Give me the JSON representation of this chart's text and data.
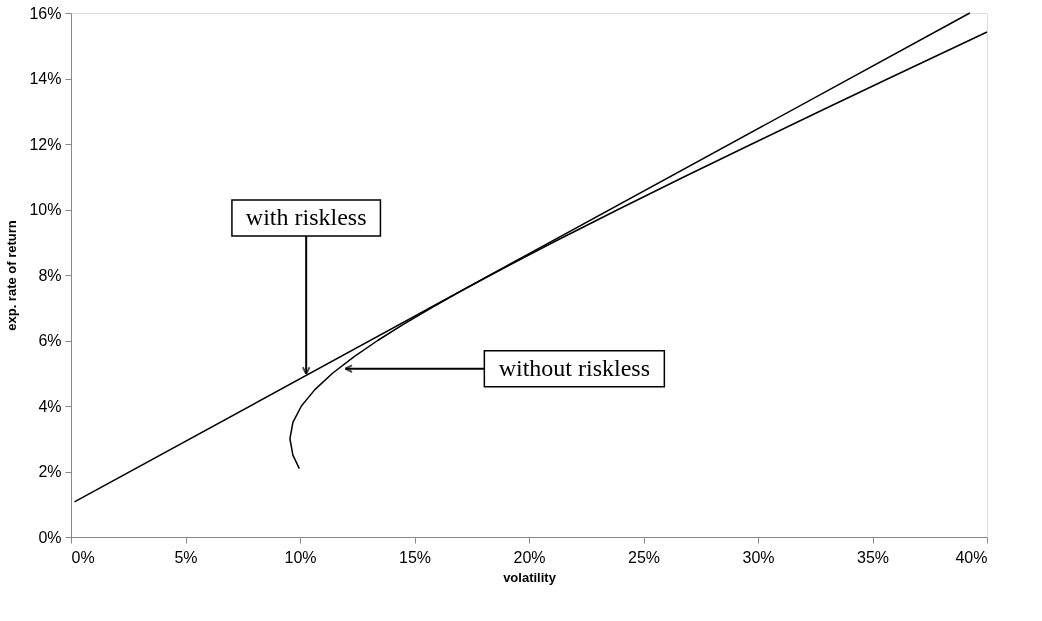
{
  "chart_data": {
    "type": "line",
    "xlabel": "volatility",
    "ylabel": "exp. rate of return",
    "xlim": [
      0,
      40
    ],
    "ylim": [
      0,
      16
    ],
    "xticks": [
      {
        "value": 0,
        "label": "0%"
      },
      {
        "value": 5,
        "label": "5%"
      },
      {
        "value": 10,
        "label": "10%"
      },
      {
        "value": 15,
        "label": "15%"
      },
      {
        "value": 20,
        "label": "20%"
      },
      {
        "value": 25,
        "label": "25%"
      },
      {
        "value": 30,
        "label": "30%"
      },
      {
        "value": 35,
        "label": "35%"
      },
      {
        "value": 40,
        "label": "40%"
      }
    ],
    "yticks": [
      {
        "value": 0,
        "label": "0%"
      },
      {
        "value": 2,
        "label": "2%"
      },
      {
        "value": 4,
        "label": "4%"
      },
      {
        "value": 6,
        "label": "6%"
      },
      {
        "value": 8,
        "label": "8%"
      },
      {
        "value": 10,
        "label": "10%"
      },
      {
        "value": 12,
        "label": "12%"
      },
      {
        "value": 14,
        "label": "14%"
      },
      {
        "value": 16,
        "label": "16%"
      }
    ],
    "grid": false,
    "marker": "none",
    "line_style": "solid",
    "series": [
      {
        "color": "#000000",
        "x": [
          0.15,
          39.25
        ],
        "values": [
          1.07,
          16.0
        ]
      },
      {
        "color": "#000000",
        "x": [
          9.97,
          9.69,
          9.56,
          9.69,
          10.06,
          10.65,
          11.42,
          12.35,
          13.39,
          14.53,
          15.74,
          17.01,
          18.33,
          21.06,
          23.89,
          26.78,
          29.73,
          32.7,
          35.7,
          38.73,
          40.0
        ],
        "values": [
          2.09,
          2.5,
          3.0,
          3.5,
          4.0,
          4.5,
          5.0,
          5.5,
          6.0,
          6.5,
          7.0,
          7.5,
          8.0,
          9.0,
          10.0,
          11.0,
          12.0,
          13.0,
          14.0,
          15.0,
          15.42
        ]
      }
    ],
    "annotations": [
      {
        "text": "with riskless",
        "x": 10.27,
        "y": 4.98
      },
      {
        "text": "without riskless",
        "x": 11.98,
        "y": 5.14
      }
    ]
  }
}
